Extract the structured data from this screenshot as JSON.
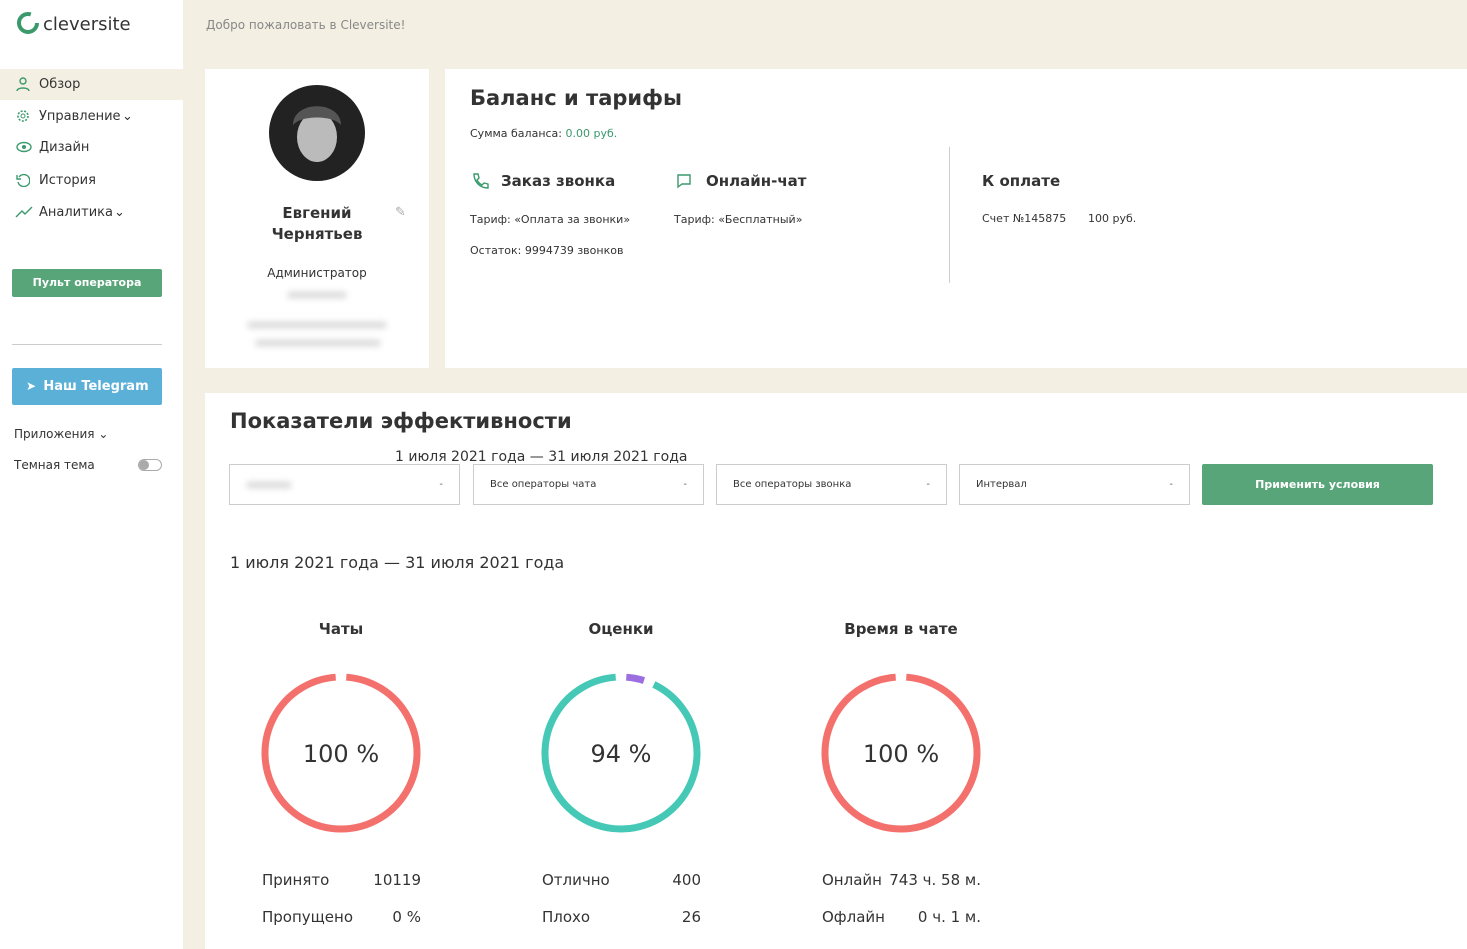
{
  "sidebar": {
    "logo": "cleversite",
    "menu": [
      "Обзор",
      "Управление",
      "Дизайн",
      "История",
      "Аналитика"
    ],
    "operator_button": "Пульт оператора",
    "telegram_button": "Наш Telegram",
    "apps": "Приложения",
    "dark_theme": "Темная тема"
  },
  "header": {
    "welcome": "Добро пожаловать в Cleversite!"
  },
  "profile": {
    "name": "Евгений Чернятьев",
    "role": "Администратор"
  },
  "balance": {
    "title": "Баланс и тарифы",
    "sum_label": "Сумма баланса:",
    "sum_value": "0.00 руб.",
    "callback": {
      "title": "Заказ звонка",
      "tariff": "Тариф: «Оплата за звонки»",
      "remaining": "Остаток: 9994739 звонков"
    },
    "chat": {
      "title": "Онлайн-чат",
      "tariff": "Тариф: «Бесплатный»"
    },
    "payment": {
      "title": "К оплате",
      "invoice": "Счет №145875",
      "amount": "100 руб."
    }
  },
  "performance": {
    "title": "Показатели эффективности",
    "filters": [
      "Все операторы чата",
      "Все операторы звонка",
      "Интервал"
    ],
    "apply_button": "Применить условия",
    "period": "1 июля 2021 года — 31 июля 2021 года",
    "metrics": [
      {
        "title": "Чаты",
        "percent": {
          "value": 100,
          "label": "100 %"
        },
        "rows": [
          {
            "label": "Принято",
            "value": "10119"
          },
          {
            "label": "Пропущено",
            "value": "0 %"
          }
        ]
      },
      {
        "title": "Оценки",
        "percent": {
          "value": 94,
          "label": "94 %"
        },
        "rows": [
          {
            "label": "Отлично",
            "value": "400"
          },
          {
            "label": "Плохо",
            "value": "26"
          }
        ]
      },
      {
        "title": "Время в чате",
        "percent": {
          "value": 100,
          "label": "100 %"
        },
        "rows": [
          {
            "label": "Онлайн",
            "value": "743 ч. 58 м."
          },
          {
            "label": "Офлайн",
            "value": "0 ч. 1 м."
          }
        ]
      }
    ]
  }
}
